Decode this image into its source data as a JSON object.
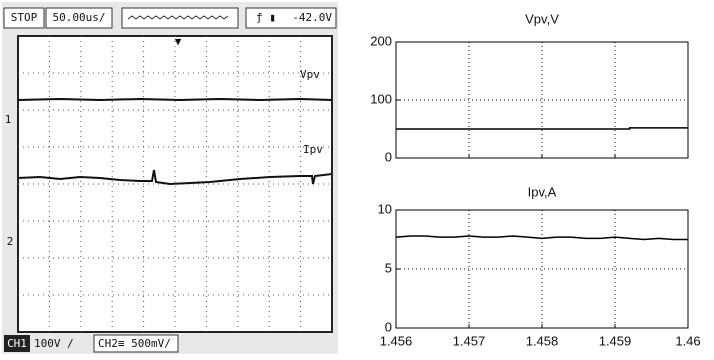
{
  "oscilloscope": {
    "run_state": "STOP",
    "timebase": "50.00us/",
    "trigger_level": "-42.0V",
    "trace_labels": [
      "Vpv",
      "Ipv"
    ],
    "ch1_label": "CH1",
    "ch1_scale": "100V /",
    "ch2_scale": "CH2≡ 500mV/"
  },
  "chart_data": [
    {
      "type": "line",
      "title": "Vpv,V",
      "x": [
        1.456,
        1.4592,
        1.4592,
        1.46
      ],
      "series": [
        {
          "name": "Vpv",
          "color": "#000000",
          "values": [
            50,
            50,
            52,
            52
          ]
        }
      ],
      "xlim": [
        1.456,
        1.46
      ],
      "xticks": [
        1.456,
        1.457,
        1.458,
        1.459,
        1.46
      ],
      "xtick_labels": false,
      "ylim": [
        0,
        200
      ],
      "yticks": [
        0,
        100,
        200
      ],
      "grid": true
    },
    {
      "type": "line",
      "title": "Ipv,A",
      "x": [
        1.456,
        1.4562,
        1.4564,
        1.4566,
        1.4568,
        1.457,
        1.4572,
        1.4574,
        1.4576,
        1.4578,
        1.458,
        1.4582,
        1.4584,
        1.4586,
        1.4588,
        1.459,
        1.4592,
        1.4594,
        1.4596,
        1.4598,
        1.46
      ],
      "series": [
        {
          "name": "Ipv",
          "color": "#000000",
          "values": [
            7.7,
            7.8,
            7.8,
            7.7,
            7.7,
            7.8,
            7.7,
            7.7,
            7.8,
            7.7,
            7.6,
            7.7,
            7.7,
            7.6,
            7.6,
            7.7,
            7.6,
            7.5,
            7.6,
            7.5,
            7.5
          ]
        }
      ],
      "xlim": [
        1.456,
        1.46
      ],
      "xticks": [
        1.456,
        1.457,
        1.458,
        1.459,
        1.46
      ],
      "xtick_labels": true,
      "ylim": [
        0,
        10
      ],
      "yticks": [
        0,
        5,
        10
      ],
      "grid": true
    }
  ]
}
